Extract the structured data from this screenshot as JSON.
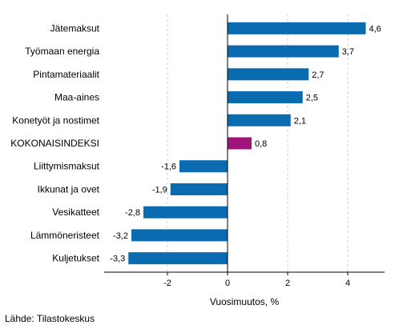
{
  "chart_data": {
    "type": "bar",
    "orientation": "horizontal",
    "categories": [
      "Jätemaksut",
      "Työmaan energia",
      "Pintamateriaalit",
      "Maa-aines",
      "Konetyöt ja nostimet",
      "KOKONAISINDEKSI",
      "Liittymismaksut",
      "Ikkunat ja ovet",
      "Vesikatteet",
      "Lämmöneristeet",
      "Kuljetukset"
    ],
    "values": [
      4.6,
      3.7,
      2.7,
      2.5,
      2.1,
      0.8,
      -1.6,
      -1.9,
      -2.8,
      -3.2,
      -3.3
    ],
    "value_labels": [
      "4,6",
      "3,7",
      "2,7",
      "2,5",
      "2,1",
      "0,8",
      "-1,6",
      "-1,9",
      "-2,8",
      "-3,2",
      "-3,3"
    ],
    "highlight_category": "KOKONAISINDEKSI",
    "xlabel": "Vuosimuutos, %",
    "xlim": [
      -4,
      5.2
    ],
    "xticks": [
      -2,
      0,
      2,
      4
    ],
    "xtick_labels": [
      "-2",
      "0",
      "2",
      "4"
    ],
    "grid": "vertical dashed",
    "colors": {
      "bar": "#0a6bb0",
      "highlight": "#a0137d",
      "grid": "#cccccc",
      "axis": "#000000"
    }
  },
  "source": "Lähde: Tilastokeskus"
}
